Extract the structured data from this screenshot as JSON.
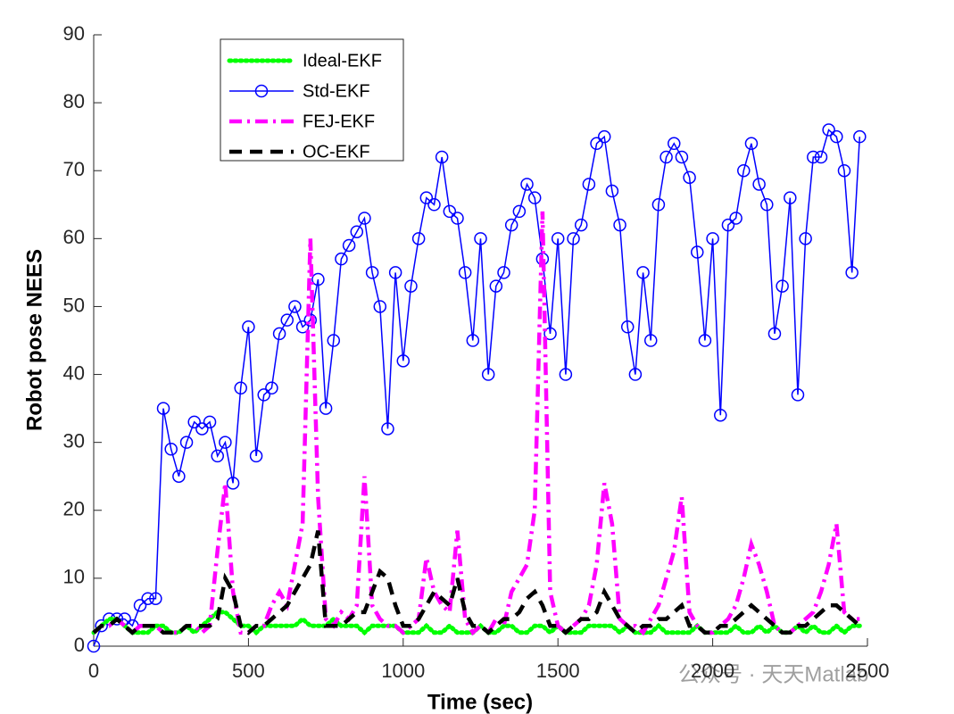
{
  "chart_data": {
    "type": "line",
    "xlabel": "Time (sec)",
    "ylabel": "Robot pose NEES",
    "watermark": "公众号 · 天天Matlab",
    "x": [
      0,
      25,
      50,
      75,
      100,
      125,
      150,
      175,
      200,
      225,
      250,
      275,
      300,
      325,
      350,
      375,
      400,
      425,
      450,
      475,
      500,
      525,
      550,
      575,
      600,
      625,
      650,
      675,
      700,
      725,
      750,
      775,
      800,
      825,
      850,
      875,
      900,
      925,
      950,
      975,
      1000,
      1025,
      1050,
      1075,
      1100,
      1125,
      1150,
      1175,
      1200,
      1225,
      1250,
      1275,
      1300,
      1325,
      1350,
      1375,
      1400,
      1425,
      1450,
      1475,
      1500,
      1525,
      1550,
      1575,
      1600,
      1625,
      1650,
      1675,
      1700,
      1725,
      1750,
      1775,
      1800,
      1825,
      1850,
      1875,
      1900,
      1925,
      1950,
      1975,
      2000,
      2025,
      2050,
      2075,
      2100,
      2125,
      2150,
      2175,
      2200,
      2225,
      2250,
      2275,
      2300,
      2325,
      2350,
      2375,
      2400,
      2425,
      2450,
      2475
    ],
    "series": [
      {
        "name": "Ideal-EKF",
        "color": "#00ff00",
        "line_style": "dotted",
        "values": [
          2,
          3,
          4,
          4,
          3,
          2,
          2,
          2,
          3,
          3,
          2,
          2,
          3,
          2,
          3,
          4,
          5,
          5,
          4,
          3,
          3,
          2,
          3,
          3,
          3,
          3,
          3,
          4,
          3,
          3,
          3,
          4,
          3,
          3,
          3,
          2,
          3,
          3,
          3,
          3,
          2,
          2,
          2,
          3,
          2,
          2,
          3,
          2,
          2,
          2,
          3,
          2,
          2,
          3,
          3,
          2,
          2,
          3,
          3,
          2,
          3,
          2,
          2,
          2,
          3,
          3,
          3,
          3,
          2,
          3,
          2,
          2,
          2,
          3,
          2,
          2,
          2,
          2,
          3,
          2,
          2,
          2,
          2,
          3,
          2,
          2,
          3,
          2,
          3,
          2,
          2,
          3,
          2,
          3,
          2,
          2,
          3,
          2,
          3,
          3
        ]
      },
      {
        "name": "Std-EKF",
        "color": "#0000ff",
        "line_style": "solid",
        "marker": "o",
        "values": [
          0,
          3,
          4,
          4,
          4,
          3,
          6,
          7,
          7,
          35,
          29,
          25,
          30,
          33,
          32,
          33,
          28,
          30,
          24,
          38,
          47,
          28,
          37,
          38,
          46,
          48,
          50,
          47,
          48,
          54,
          35,
          45,
          57,
          59,
          61,
          63,
          55,
          50,
          32,
          55,
          42,
          53,
          60,
          66,
          65,
          72,
          64,
          63,
          55,
          45,
          60,
          40,
          53,
          55,
          62,
          64,
          68,
          66,
          57,
          46,
          60,
          40,
          60,
          62,
          68,
          74,
          75,
          67,
          62,
          47,
          40,
          55,
          45,
          65,
          72,
          74,
          72,
          69,
          58,
          45,
          60,
          34,
          62,
          63,
          70,
          74,
          68,
          65,
          46,
          53,
          66,
          37,
          60,
          72,
          72,
          76,
          75,
          70,
          55,
          75
        ]
      },
      {
        "name": "FEJ-EKF",
        "color": "#ff00ff",
        "line_style": "dashdot",
        "values": [
          2,
          3,
          3,
          4,
          3,
          2,
          3,
          3,
          3,
          2,
          2,
          2,
          3,
          3,
          2,
          3,
          14,
          24,
          8,
          2,
          2,
          3,
          3,
          6,
          8,
          6,
          12,
          18,
          60,
          22,
          4,
          3,
          5,
          4,
          6,
          25,
          6,
          4,
          3,
          3,
          2,
          3,
          4,
          13,
          8,
          6,
          5,
          17,
          4,
          2,
          3,
          2,
          4,
          3,
          8,
          10,
          12,
          20,
          64,
          8,
          3,
          2,
          3,
          4,
          6,
          12,
          24,
          18,
          4,
          3,
          3,
          2,
          4,
          6,
          10,
          14,
          22,
          5,
          3,
          2,
          2,
          3,
          4,
          6,
          10,
          15,
          12,
          8,
          3,
          2,
          2,
          3,
          4,
          5,
          8,
          12,
          18,
          5,
          4,
          4
        ]
      },
      {
        "name": "OC-EKF",
        "color": "#000000",
        "line_style": "dashed",
        "values": [
          2,
          3,
          3,
          4,
          3,
          2,
          3,
          3,
          3,
          2,
          2,
          2,
          3,
          3,
          3,
          3,
          4,
          10,
          8,
          3,
          2,
          3,
          3,
          4,
          5,
          6,
          8,
          10,
          12,
          17,
          3,
          3,
          3,
          4,
          5,
          5,
          8,
          11,
          10,
          6,
          3,
          3,
          4,
          6,
          8,
          7,
          6,
          10,
          5,
          3,
          3,
          2,
          3,
          4,
          4,
          5,
          7,
          8,
          6,
          3,
          3,
          2,
          3,
          4,
          4,
          5,
          8,
          6,
          4,
          3,
          2,
          3,
          3,
          4,
          4,
          5,
          6,
          3,
          3,
          2,
          2,
          3,
          3,
          4,
          5,
          6,
          5,
          4,
          3,
          2,
          2,
          3,
          3,
          4,
          5,
          6,
          6,
          5,
          4,
          3
        ]
      }
    ],
    "xlim": [
      0,
      2500
    ],
    "xticks": [
      0,
      500,
      1000,
      1500,
      2000,
      2500
    ],
    "ylim": [
      0,
      90
    ],
    "yticks": [
      0,
      10,
      20,
      30,
      40,
      50,
      60,
      70,
      80,
      90
    ],
    "grid": false,
    "legend": "upper left"
  }
}
